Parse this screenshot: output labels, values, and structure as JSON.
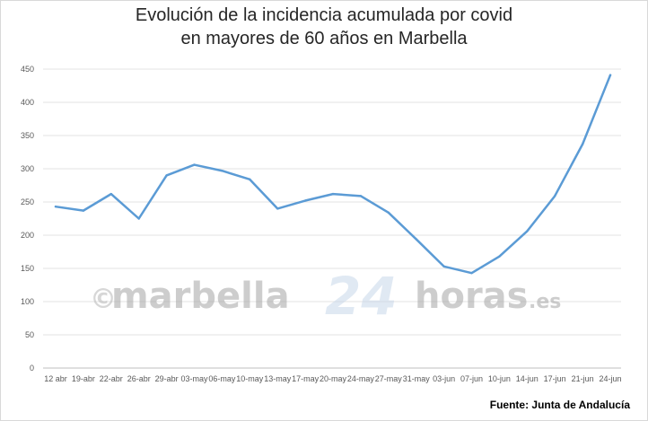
{
  "page": {
    "title_line1": "Evolución de la incidencia acumulada por covid",
    "title_line2": "en mayores de 60 años en Marbella",
    "source": "Fuente: Junta de Andalucía",
    "watermark": {
      "copyright": "©",
      "part1": "marbella",
      "part2": "24",
      "part3": "horas",
      "part4": ".es"
    }
  },
  "chart_data": {
    "type": "line",
    "title": "Evolución de la incidencia acumulada por covid en mayores de 60 años en Marbella",
    "xlabel": "",
    "ylabel": "",
    "ylim": [
      0,
      450
    ],
    "yticks": [
      0,
      50,
      100,
      150,
      200,
      250,
      300,
      350,
      400,
      450
    ],
    "grid": true,
    "legend": "none",
    "categories": [
      "12 abr",
      "19-abr",
      "22-abr",
      "26-abr",
      "29-abr",
      "03-may",
      "06-may",
      "10-may",
      "13-may",
      "17-may",
      "20-may",
      "24-may",
      "27-may",
      "31-may",
      "03-jun",
      "07-jun",
      "10-jun",
      "14-jun",
      "17-jun",
      "21-jun",
      "24-jun"
    ],
    "series": [
      {
        "color": "#5b9bd5",
        "values": [
          243,
          237,
          262,
          225,
          290,
          306,
          297,
          284,
          240,
          252,
          262,
          259,
          234,
          194,
          153,
          143,
          168,
          206,
          259,
          337,
          441
        ]
      }
    ]
  }
}
